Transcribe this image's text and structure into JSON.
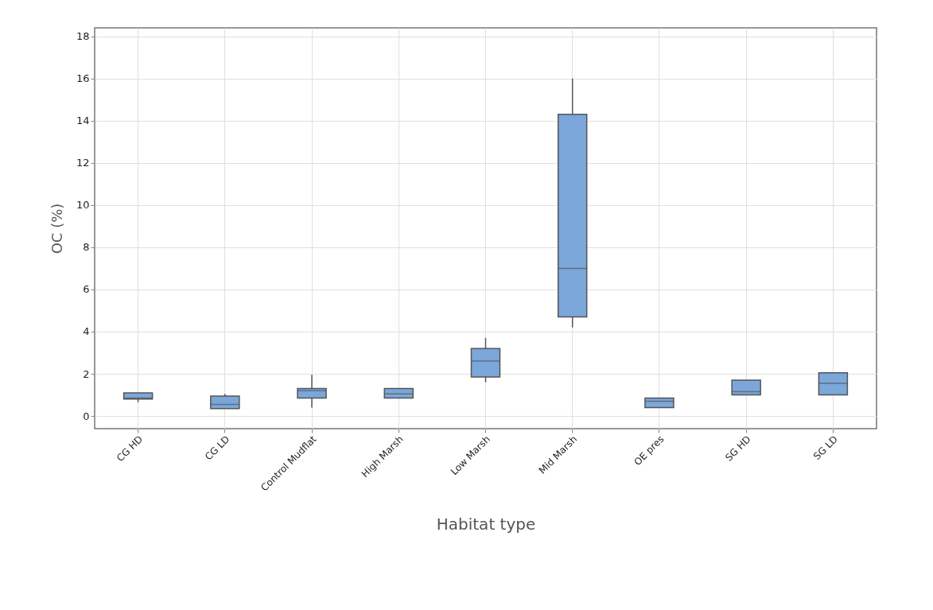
{
  "chart_data": {
    "type": "box",
    "xlabel": "Habitat type",
    "ylabel": "OC (%)",
    "categories": [
      "CG HD",
      "CG LD",
      "Control Mudflat",
      "High Marsh",
      "Low Marsh",
      "Mid Marsh",
      "OE pres",
      "SG HD",
      "SG LD"
    ],
    "color": "#7ba7da",
    "boxes": [
      {
        "low": 0.65,
        "q1": 0.8,
        "median": 0.85,
        "q3": 1.1,
        "high": 1.1
      },
      {
        "low": 0.35,
        "q1": 0.35,
        "median": 0.55,
        "q3": 0.95,
        "high": 1.05
      },
      {
        "low": 0.4,
        "q1": 0.85,
        "median": 1.2,
        "q3": 1.3,
        "high": 1.95
      },
      {
        "low": 0.85,
        "q1": 0.85,
        "median": 1.05,
        "q3": 1.3,
        "high": 1.3
      },
      {
        "low": 1.6,
        "q1": 1.85,
        "median": 2.6,
        "q3": 3.2,
        "high": 3.7
      },
      {
        "low": 4.2,
        "q1": 4.7,
        "median": 7.0,
        "q3": 14.3,
        "high": 16.0
      },
      {
        "low": 0.4,
        "q1": 0.4,
        "median": 0.7,
        "q3": 0.85,
        "high": 0.85
      },
      {
        "low": 1.0,
        "q1": 1.0,
        "median": 1.15,
        "q3": 1.7,
        "high": 1.7
      },
      {
        "low": 1.0,
        "q1": 1.0,
        "median": 1.55,
        "q3": 2.05,
        "high": 2.05
      }
    ],
    "ylim": [
      -0.6,
      18.4
    ],
    "yticks": [
      0,
      2,
      4,
      6,
      8,
      10,
      12,
      14,
      16,
      18
    ],
    "grid": true
  }
}
